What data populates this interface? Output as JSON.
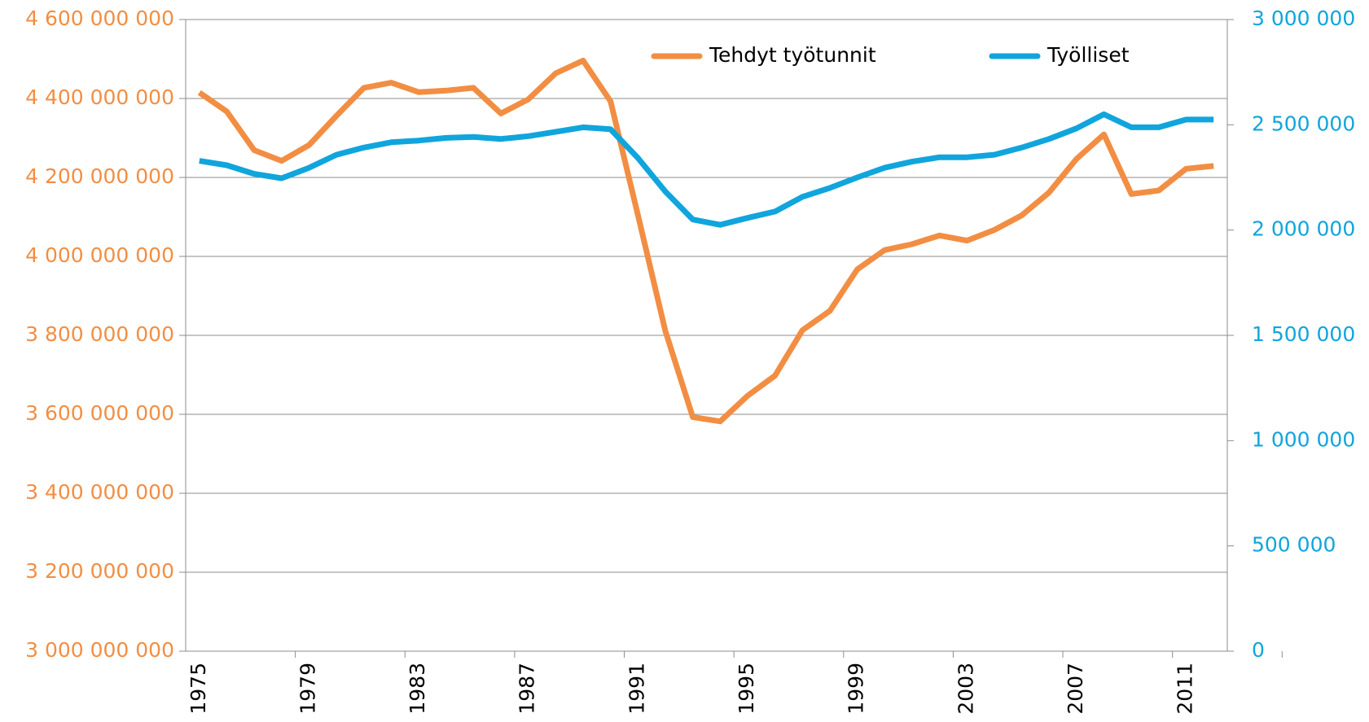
{
  "chart_data": {
    "type": "line",
    "categories": [
      "1975",
      null,
      null,
      null,
      "1979",
      null,
      null,
      null,
      "1983",
      null,
      null,
      null,
      "1987",
      null,
      null,
      null,
      "1991",
      null,
      null,
      null,
      "1995",
      null,
      null,
      null,
      "1999",
      null,
      null,
      null,
      "2003",
      null,
      null,
      null,
      "2007",
      null,
      null,
      null,
      "2011",
      null
    ],
    "series": [
      {
        "name": "Tehdyt työtunnit",
        "color": "#f28e43",
        "axis": "y",
        "values": [
          4415000000,
          4367000000,
          4269000000,
          4242000000,
          4282000000,
          4356000000,
          4427000000,
          4440000000,
          4416000000,
          4420000000,
          4427000000,
          4362000000,
          4398000000,
          4464000000,
          4496000000,
          4393000000,
          4104000000,
          3811000000,
          3593000000,
          3582000000,
          3647000000,
          3698000000,
          3813000000,
          3862000000,
          3967000000,
          4016000000,
          4031000000,
          4053000000,
          4040000000,
          4067000000,
          4104000000,
          4162000000,
          4247000000,
          4309000000,
          4158000000,
          4167000000,
          4222000000,
          4229000000
        ]
      },
      {
        "name": "Työlliset",
        "color": "#10a5dc",
        "axis": "y2",
        "values": [
          2329000,
          2308000,
          2267000,
          2246000,
          2296000,
          2358000,
          2392000,
          2417000,
          2425000,
          2438000,
          2442000,
          2433000,
          2446000,
          2467000,
          2488000,
          2479000,
          2342000,
          2183000,
          2050000,
          2025000,
          2058000,
          2088000,
          2158000,
          2200000,
          2250000,
          2296000,
          2325000,
          2346000,
          2346000,
          2358000,
          2392000,
          2433000,
          2483000,
          2550000,
          2488000,
          2488000,
          2525000,
          2525000
        ]
      }
    ],
    "ylim": [
      3000000000,
      4600000000
    ],
    "yticks": [
      {
        "value": 3000000000,
        "label": "3 000 000 000"
      },
      {
        "value": 3200000000,
        "label": "3 200 000 000"
      },
      {
        "value": 3400000000,
        "label": "3 400 000 000"
      },
      {
        "value": 3600000000,
        "label": "3 600 000 000"
      },
      {
        "value": 3800000000,
        "label": "3 800 000 000"
      },
      {
        "value": 4000000000,
        "label": "4 000 000 000"
      },
      {
        "value": 4200000000,
        "label": "4 200 000 000"
      },
      {
        "value": 4400000000,
        "label": "4 400 000 000"
      },
      {
        "value": 4600000000,
        "label": "4 600 000 000"
      }
    ],
    "y2lim": [
      0,
      3000000
    ],
    "y2ticks": [
      0,
      {
        "value": 500000,
        "label": "500 000"
      },
      {
        "value": 1000000,
        "label": "1 000 000"
      },
      {
        "value": 1500000,
        "label": "1 500 000"
      },
      {
        "value": 2000000,
        "label": "2 000 000"
      },
      {
        "value": 2500000,
        "label": "2 500 000"
      },
      {
        "value": 3000000,
        "label": "3 000 000"
      }
    ],
    "grid": true,
    "legend": "top"
  }
}
